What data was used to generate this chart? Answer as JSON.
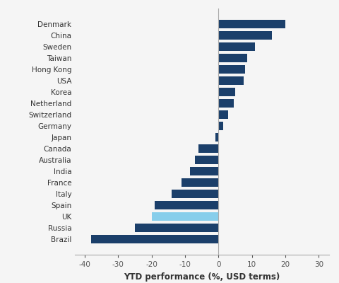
{
  "categories": [
    "Denmark",
    "China",
    "Sweden",
    "Taiwan",
    "Hong Kong",
    "USA",
    "Korea",
    "Netherland",
    "Switzerland",
    "Germany",
    "Japan",
    "Canada",
    "Australia",
    "India",
    "France",
    "Italy",
    "Spain",
    "UK",
    "Russia",
    "Brazil"
  ],
  "values": [
    20,
    16,
    11,
    8.5,
    8,
    7.5,
    5,
    4.5,
    3,
    1.5,
    -1,
    -6,
    -7,
    -8.5,
    -11,
    -14,
    -19,
    -20,
    -25,
    -38
  ],
  "colors": [
    "#1b3f6a",
    "#1b3f6a",
    "#1b3f6a",
    "#1b3f6a",
    "#1b3f6a",
    "#1b3f6a",
    "#1b3f6a",
    "#1b3f6a",
    "#1b3f6a",
    "#1b3f6a",
    "#1b3f6a",
    "#1b3f6a",
    "#1b3f6a",
    "#1b3f6a",
    "#1b3f6a",
    "#1b3f6a",
    "#1b3f6a",
    "#87ceeb",
    "#1b3f6a",
    "#1b3f6a"
  ],
  "xlabel": "YTD performance (%, USD terms)",
  "xlim": [
    -43,
    33
  ],
  "xticks": [
    -40,
    -30,
    -20,
    -10,
    0,
    10,
    20,
    30
  ],
  "background_color": "#f5f5f5",
  "bar_height": 0.75,
  "label_fontsize": 7.5,
  "xlabel_fontsize": 8.5
}
